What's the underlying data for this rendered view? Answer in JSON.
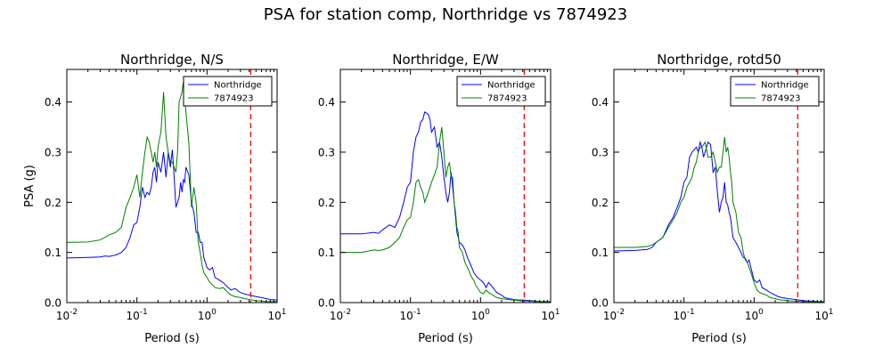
{
  "figure_title": "PSA for station comp, Northridge vs 7874923",
  "colors": {
    "Northridge": "#0000ff",
    "7874923": "#008000",
    "cutoff": "#ff0000"
  },
  "chart_data": [
    {
      "type": "line",
      "title": "Northridge, N/S",
      "xlabel": "Period (s)",
      "ylabel": "PSA (g)",
      "xscale": "log",
      "xlim": [
        0.01,
        10
      ],
      "ylim": [
        0,
        0.465
      ],
      "xticks": [
        "10^-2",
        "10^-1",
        "10^0",
        "10^1"
      ],
      "yticks": [
        "0.0",
        "0.1",
        "0.2",
        "0.3",
        "0.4"
      ],
      "legend": "top-right",
      "cutoff_period": 4.2,
      "series": [
        {
          "name": "Northridge",
          "x": [
            0.01,
            0.02,
            0.03,
            0.035,
            0.04,
            0.05,
            0.06,
            0.07,
            0.08,
            0.09,
            0.1,
            0.11,
            0.12,
            0.13,
            0.14,
            0.15,
            0.16,
            0.17,
            0.18,
            0.19,
            0.2,
            0.22,
            0.24,
            0.26,
            0.28,
            0.3,
            0.32,
            0.34,
            0.36,
            0.38,
            0.4,
            0.42,
            0.44,
            0.46,
            0.48,
            0.5,
            0.55,
            0.6,
            0.65,
            0.7,
            0.75,
            0.8,
            0.85,
            0.9,
            1.0,
            1.1,
            1.2,
            1.3,
            1.5,
            1.7,
            2.0,
            2.2,
            2.5,
            3.0,
            3.5,
            4.0,
            5.0,
            6.0,
            7.0,
            8.0,
            10.0
          ],
          "y": [
            0.089,
            0.09,
            0.091,
            0.093,
            0.092,
            0.095,
            0.1,
            0.11,
            0.13,
            0.155,
            0.16,
            0.19,
            0.23,
            0.21,
            0.22,
            0.215,
            0.23,
            0.26,
            0.27,
            0.24,
            0.28,
            0.26,
            0.3,
            0.25,
            0.3,
            0.27,
            0.305,
            0.25,
            0.19,
            0.2,
            0.21,
            0.24,
            0.22,
            0.245,
            0.24,
            0.27,
            0.255,
            0.2,
            0.18,
            0.14,
            0.14,
            0.12,
            0.12,
            0.09,
            0.07,
            0.065,
            0.07,
            0.05,
            0.045,
            0.04,
            0.03,
            0.025,
            0.028,
            0.02,
            0.017,
            0.015,
            0.012,
            0.01,
            0.008,
            0.006,
            0.005
          ]
        },
        {
          "name": "7874923",
          "x": [
            0.01,
            0.02,
            0.03,
            0.035,
            0.04,
            0.05,
            0.06,
            0.07,
            0.08,
            0.09,
            0.1,
            0.11,
            0.12,
            0.13,
            0.14,
            0.15,
            0.16,
            0.17,
            0.18,
            0.19,
            0.2,
            0.22,
            0.24,
            0.26,
            0.28,
            0.3,
            0.32,
            0.34,
            0.36,
            0.38,
            0.4,
            0.42,
            0.44,
            0.46,
            0.48,
            0.5,
            0.55,
            0.6,
            0.65,
            0.7,
            0.75,
            0.8,
            0.85,
            0.9,
            1.0,
            1.1,
            1.2,
            1.3,
            1.5,
            1.7,
            2.0,
            2.2,
            2.5,
            3.0,
            3.5,
            4.0,
            5.0,
            6.0,
            7.0,
            8.0,
            10.0
          ],
          "y": [
            0.12,
            0.121,
            0.125,
            0.13,
            0.135,
            0.14,
            0.15,
            0.19,
            0.21,
            0.23,
            0.255,
            0.21,
            0.26,
            0.3,
            0.33,
            0.32,
            0.3,
            0.28,
            0.3,
            0.27,
            0.31,
            0.34,
            0.42,
            0.33,
            0.3,
            0.28,
            0.28,
            0.27,
            0.26,
            0.3,
            0.4,
            0.41,
            0.42,
            0.44,
            0.41,
            0.38,
            0.32,
            0.19,
            0.23,
            0.2,
            0.12,
            0.1,
            0.075,
            0.06,
            0.05,
            0.04,
            0.035,
            0.03,
            0.028,
            0.03,
            0.02,
            0.015,
            0.012,
            0.01,
            0.008,
            0.006,
            0.004,
            0.003,
            0.002,
            0.002,
            0.002
          ]
        }
      ]
    },
    {
      "type": "line",
      "title": "Northridge, E/W",
      "xlabel": "Period (s)",
      "ylabel": "",
      "xscale": "log",
      "xlim": [
        0.01,
        10
      ],
      "ylim": [
        0,
        0.465
      ],
      "xticks": [
        "10^-2",
        "10^-1",
        "10^0",
        "10^1"
      ],
      "yticks": [
        "0.0",
        "0.1",
        "0.2",
        "0.3",
        "0.4"
      ],
      "legend": "top-right",
      "cutoff_period": 4.2,
      "series": [
        {
          "name": "Northridge",
          "x": [
            0.01,
            0.02,
            0.03,
            0.035,
            0.04,
            0.05,
            0.06,
            0.07,
            0.08,
            0.09,
            0.1,
            0.11,
            0.12,
            0.13,
            0.14,
            0.15,
            0.16,
            0.17,
            0.18,
            0.19,
            0.2,
            0.22,
            0.24,
            0.26,
            0.28,
            0.3,
            0.32,
            0.34,
            0.36,
            0.38,
            0.4,
            0.42,
            0.44,
            0.46,
            0.48,
            0.5,
            0.55,
            0.6,
            0.65,
            0.7,
            0.75,
            0.8,
            0.85,
            0.9,
            1.0,
            1.1,
            1.2,
            1.3,
            1.5,
            1.7,
            2.0,
            2.2,
            2.5,
            3.0,
            3.5,
            4.0,
            5.0,
            6.0,
            7.0,
            8.0,
            10.0
          ],
          "y": [
            0.137,
            0.137,
            0.14,
            0.138,
            0.145,
            0.155,
            0.15,
            0.17,
            0.2,
            0.23,
            0.24,
            0.3,
            0.33,
            0.34,
            0.36,
            0.365,
            0.38,
            0.378,
            0.375,
            0.365,
            0.34,
            0.35,
            0.31,
            0.32,
            0.29,
            0.25,
            0.22,
            0.2,
            0.22,
            0.26,
            0.23,
            0.2,
            0.17,
            0.14,
            0.13,
            0.12,
            0.115,
            0.105,
            0.09,
            0.08,
            0.07,
            0.06,
            0.055,
            0.05,
            0.045,
            0.04,
            0.03,
            0.04,
            0.03,
            0.02,
            0.015,
            0.01,
            0.008,
            0.006,
            0.005,
            0.005,
            0.004,
            0.003,
            0.002,
            0.002,
            0.002
          ]
        },
        {
          "name": "7874923",
          "x": [
            0.01,
            0.02,
            0.03,
            0.035,
            0.04,
            0.05,
            0.06,
            0.07,
            0.08,
            0.09,
            0.1,
            0.11,
            0.12,
            0.13,
            0.14,
            0.15,
            0.16,
            0.17,
            0.18,
            0.19,
            0.2,
            0.22,
            0.24,
            0.26,
            0.28,
            0.3,
            0.32,
            0.34,
            0.36,
            0.38,
            0.4,
            0.42,
            0.44,
            0.46,
            0.48,
            0.5,
            0.55,
            0.6,
            0.65,
            0.7,
            0.75,
            0.8,
            0.85,
            0.9,
            1.0,
            1.1,
            1.2,
            1.3,
            1.5,
            1.7,
            2.0,
            2.2,
            2.5,
            3.0,
            3.5,
            4.0,
            5.0,
            6.0,
            7.0,
            8.0,
            10.0
          ],
          "y": [
            0.1,
            0.1,
            0.105,
            0.104,
            0.105,
            0.11,
            0.12,
            0.13,
            0.15,
            0.165,
            0.17,
            0.2,
            0.24,
            0.245,
            0.23,
            0.22,
            0.2,
            0.21,
            0.22,
            0.23,
            0.24,
            0.255,
            0.27,
            0.32,
            0.35,
            0.3,
            0.25,
            0.27,
            0.28,
            0.25,
            0.25,
            0.2,
            0.18,
            0.15,
            0.14,
            0.11,
            0.1,
            0.08,
            0.07,
            0.06,
            0.05,
            0.045,
            0.035,
            0.03,
            0.02,
            0.018,
            0.025,
            0.02,
            0.015,
            0.01,
            0.008,
            0.007,
            0.006,
            0.005,
            0.004,
            0.003,
            0.003,
            0.002,
            0.002,
            0.002,
            0.002
          ]
        }
      ]
    },
    {
      "type": "line",
      "title": "Northridge, rotd50",
      "xlabel": "Period (s)",
      "ylabel": "",
      "xscale": "log",
      "xlim": [
        0.01,
        10
      ],
      "ylim": [
        0,
        0.465
      ],
      "xticks": [
        "10^-2",
        "10^-1",
        "10^0",
        "10^1"
      ],
      "yticks": [
        "0.0",
        "0.1",
        "0.2",
        "0.3",
        "0.4"
      ],
      "legend": "top-right",
      "cutoff_period": 4.2,
      "series": [
        {
          "name": "Northridge",
          "x": [
            0.01,
            0.02,
            0.03,
            0.035,
            0.04,
            0.05,
            0.06,
            0.07,
            0.08,
            0.09,
            0.1,
            0.11,
            0.12,
            0.13,
            0.14,
            0.15,
            0.16,
            0.17,
            0.18,
            0.19,
            0.2,
            0.22,
            0.24,
            0.26,
            0.28,
            0.3,
            0.32,
            0.34,
            0.36,
            0.38,
            0.4,
            0.42,
            0.44,
            0.46,
            0.48,
            0.5,
            0.55,
            0.6,
            0.65,
            0.7,
            0.75,
            0.8,
            0.85,
            0.9,
            1.0,
            1.1,
            1.2,
            1.3,
            1.5,
            1.7,
            2.0,
            2.2,
            2.5,
            3.0,
            3.5,
            4.0,
            5.0,
            6.0,
            7.0,
            8.0,
            10.0
          ],
          "y": [
            0.103,
            0.104,
            0.106,
            0.11,
            0.12,
            0.13,
            0.155,
            0.17,
            0.19,
            0.21,
            0.24,
            0.25,
            0.29,
            0.3,
            0.305,
            0.31,
            0.3,
            0.32,
            0.31,
            0.29,
            0.3,
            0.32,
            0.315,
            0.26,
            0.27,
            0.22,
            0.18,
            0.2,
            0.21,
            0.24,
            0.2,
            0.195,
            0.18,
            0.17,
            0.15,
            0.13,
            0.12,
            0.11,
            0.1,
            0.09,
            0.088,
            0.08,
            0.085,
            0.07,
            0.045,
            0.04,
            0.045,
            0.03,
            0.025,
            0.02,
            0.015,
            0.012,
            0.01,
            0.008,
            0.007,
            0.006,
            0.004,
            0.003,
            0.003,
            0.002,
            0.002
          ]
        },
        {
          "name": "7874923",
          "x": [
            0.01,
            0.02,
            0.03,
            0.035,
            0.04,
            0.05,
            0.06,
            0.07,
            0.08,
            0.09,
            0.1,
            0.11,
            0.12,
            0.13,
            0.14,
            0.15,
            0.16,
            0.17,
            0.18,
            0.19,
            0.2,
            0.22,
            0.24,
            0.26,
            0.28,
            0.3,
            0.32,
            0.34,
            0.36,
            0.38,
            0.4,
            0.42,
            0.44,
            0.46,
            0.48,
            0.5,
            0.55,
            0.6,
            0.65,
            0.7,
            0.75,
            0.8,
            0.85,
            0.9,
            1.0,
            1.1,
            1.2,
            1.3,
            1.5,
            1.7,
            2.0,
            2.2,
            2.5,
            3.0,
            3.5,
            4.0,
            5.0,
            6.0,
            7.0,
            8.0,
            10.0
          ],
          "y": [
            0.11,
            0.11,
            0.112,
            0.115,
            0.12,
            0.13,
            0.15,
            0.165,
            0.18,
            0.2,
            0.21,
            0.23,
            0.24,
            0.25,
            0.27,
            0.28,
            0.3,
            0.31,
            0.31,
            0.315,
            0.32,
            0.29,
            0.29,
            0.3,
            0.28,
            0.26,
            0.27,
            0.27,
            0.3,
            0.33,
            0.3,
            0.31,
            0.29,
            0.26,
            0.24,
            0.2,
            0.18,
            0.14,
            0.13,
            0.1,
            0.085,
            0.08,
            0.07,
            0.06,
            0.04,
            0.025,
            0.02,
            0.018,
            0.015,
            0.01,
            0.008,
            0.006,
            0.005,
            0.004,
            0.003,
            0.003,
            0.002,
            0.002,
            0.002,
            0.002,
            0.002
          ]
        }
      ]
    }
  ]
}
